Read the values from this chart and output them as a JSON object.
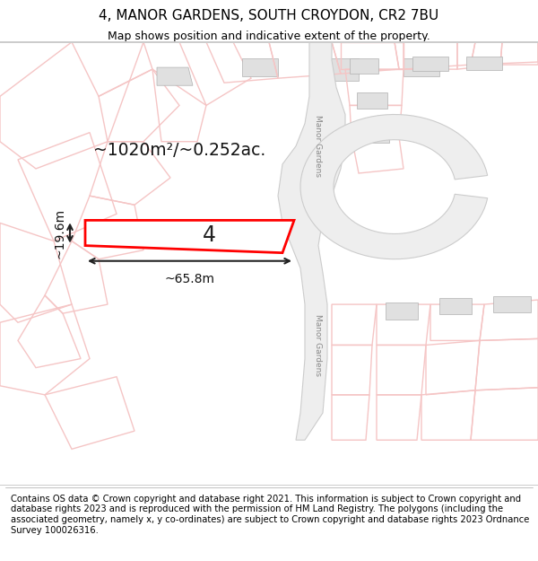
{
  "title": "4, MANOR GARDENS, SOUTH CROYDON, CR2 7BU",
  "subtitle": "Map shows position and indicative extent of the property.",
  "footer": "Contains OS data © Crown copyright and database right 2021. This information is subject to Crown copyright and database rights 2023 and is reproduced with the permission of HM Land Registry. The polygons (including the associated geometry, namely x, y co-ordinates) are subject to Crown copyright and database rights 2023 Ordnance Survey 100026316.",
  "area_label": "~1020m²/~0.252ac.",
  "width_label": "~65.8m",
  "height_label": "~19.6m",
  "plot_number": "4",
  "bg_color": "#ffffff",
  "road_color_light": "#f5c5c5",
  "plot_color": "#ff0000",
  "dim_color": "#222222",
  "title_fontsize": 11,
  "subtitle_fontsize": 9,
  "footer_fontsize": 7.2,
  "road_label": "Manor Gardens",
  "road_label2": "Manor Gardens"
}
